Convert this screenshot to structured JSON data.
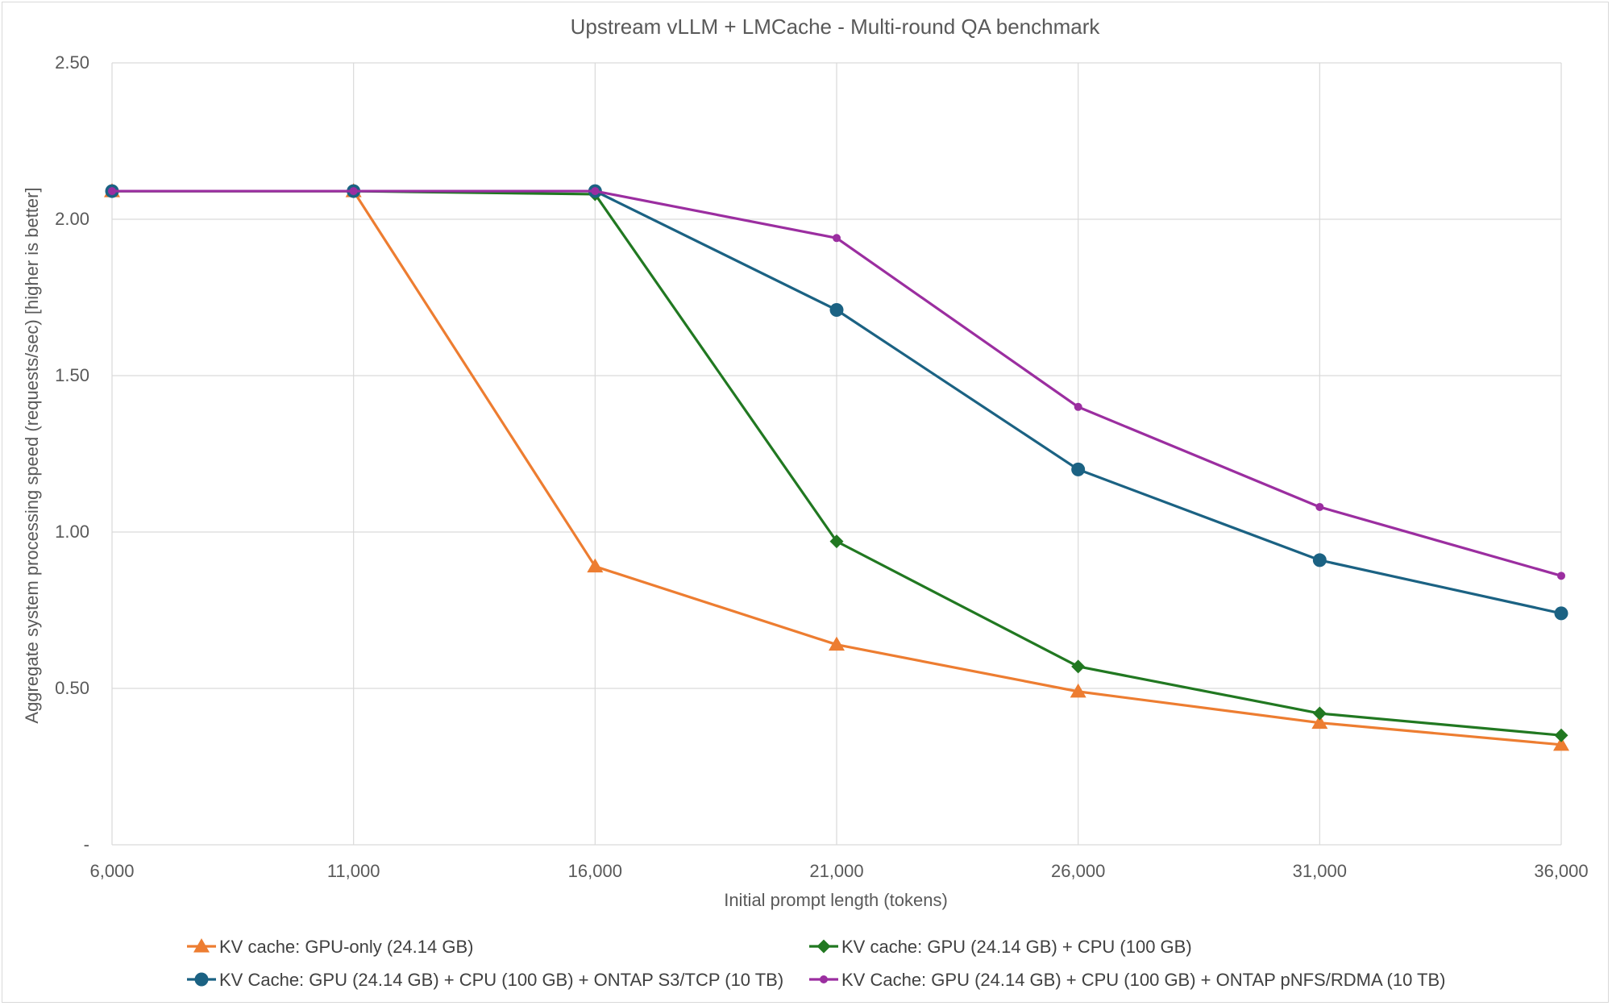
{
  "chart_data": {
    "type": "line",
    "title": "Upstream vLLM + LMCache - Multi-round QA benchmark",
    "xlabel": "Initial prompt length (tokens)",
    "ylabel": "Aggregate system processing speed (requests/sec) [higher is better]",
    "x": [
      6000,
      11000,
      16000,
      21000,
      26000,
      31000,
      36000
    ],
    "x_tick_labels": [
      "6,000",
      "11,000",
      "16,000",
      "21,000",
      "26,000",
      "31,000",
      "36,000"
    ],
    "ylim": [
      0,
      2.5
    ],
    "y_ticks": [
      0,
      0.5,
      1.0,
      1.5,
      2.0,
      2.5
    ],
    "y_tick_labels": [
      "-",
      "0.50",
      "1.00",
      "1.50",
      "2.00",
      "2.50"
    ],
    "grid": true,
    "legend_position": "bottom",
    "series": [
      {
        "name": "KV cache: GPU-only (24.14 GB)",
        "color": "#ED7D31",
        "marker": "triangle",
        "values": [
          2.09,
          2.09,
          0.89,
          0.64,
          0.49,
          0.39,
          0.32
        ]
      },
      {
        "name": "KV cache: GPU (24.14 GB) + CPU (100 GB)",
        "color": "#217821",
        "marker": "diamond",
        "values": [
          2.09,
          2.09,
          2.08,
          0.97,
          0.57,
          0.42,
          0.35
        ]
      },
      {
        "name": "KV Cache: GPU (24.14 GB) + CPU (100 GB) + ONTAP S3/TCP (10 TB)",
        "color": "#1B6283",
        "marker": "circle",
        "values": [
          2.09,
          2.09,
          2.09,
          1.71,
          1.2,
          0.91,
          0.74
        ]
      },
      {
        "name": "KV Cache: GPU (24.14 GB) + CPU (100 GB) + ONTAP pNFS/RDMA (10 TB)",
        "color": "#9B2EA0",
        "marker": "small-circle",
        "values": [
          2.09,
          2.09,
          2.09,
          1.94,
          1.4,
          1.08,
          0.86
        ]
      }
    ]
  }
}
